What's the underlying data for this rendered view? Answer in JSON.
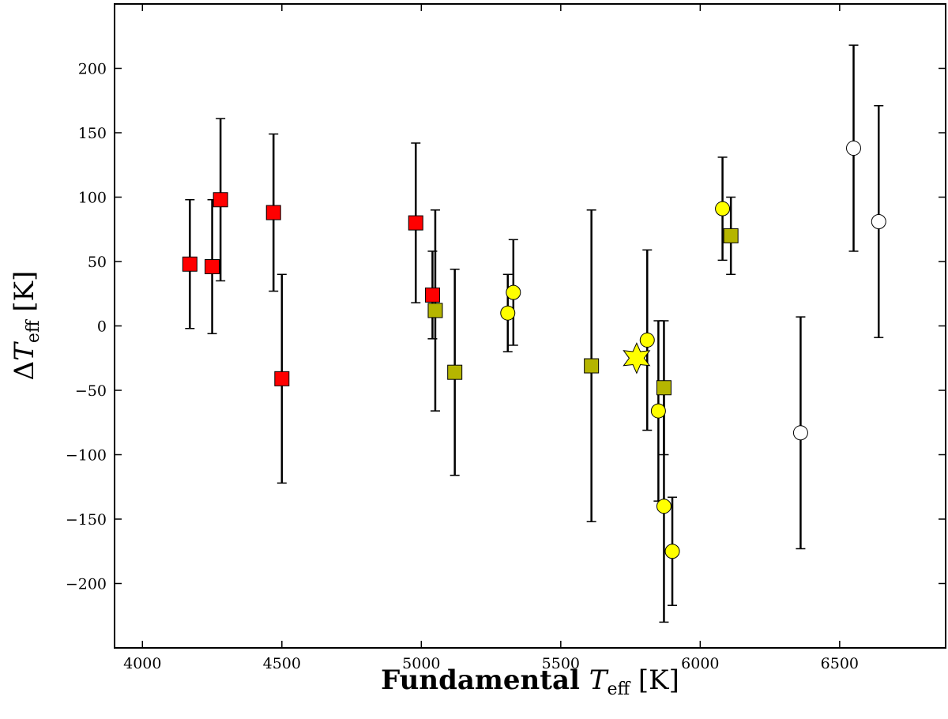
{
  "chart_data": {
    "type": "scatter",
    "xlabel_parts": {
      "prefix": "Fundamental ",
      "symbol": "T",
      "sub": "eff",
      "unit": " [K]"
    },
    "ylabel_parts": {
      "prefix": "Δ",
      "symbol": "T",
      "sub": "eff",
      "unit": " [K]"
    },
    "xlim": [
      3900,
      6880
    ],
    "ylim": [
      -250,
      250
    ],
    "xticks": [
      4000,
      4500,
      5000,
      5500,
      6000,
      6500
    ],
    "yticks": [
      -200,
      -150,
      -100,
      -50,
      0,
      50,
      100,
      150,
      200
    ],
    "ytick_labels": [
      "−200",
      "−150",
      "−100",
      "−50",
      "0",
      "50",
      "100",
      "150",
      "200"
    ],
    "grid": false,
    "series": [
      {
        "marker": "square",
        "color": "#ff0000",
        "points": [
          {
            "x": 4170,
            "y": 48,
            "err_lo": 50,
            "err_hi": 50
          },
          {
            "x": 4250,
            "y": 46,
            "err_lo": 52,
            "err_hi": 52
          },
          {
            "x": 4280,
            "y": 98,
            "err_lo": 63,
            "err_hi": 63
          },
          {
            "x": 4470,
            "y": 88,
            "err_lo": 61,
            "err_hi": 61
          },
          {
            "x": 4500,
            "y": -41,
            "err_lo": 81,
            "err_hi": 81
          },
          {
            "x": 4980,
            "y": 80,
            "err_lo": 62,
            "err_hi": 62
          },
          {
            "x": 5040,
            "y": 24,
            "err_lo": 34,
            "err_hi": 34
          }
        ]
      },
      {
        "marker": "square",
        "color": "#b5b500",
        "points": [
          {
            "x": 5050,
            "y": 12,
            "err_lo": 78,
            "err_hi": 78
          },
          {
            "x": 5120,
            "y": -36,
            "err_lo": 80,
            "err_hi": 80
          },
          {
            "x": 5610,
            "y": -31,
            "err_lo": 121,
            "err_hi": 121
          },
          {
            "x": 5870,
            "y": -48,
            "err_lo": 52,
            "err_hi": 52
          },
          {
            "x": 6110,
            "y": 70,
            "err_lo": 30,
            "err_hi": 30
          }
        ]
      },
      {
        "marker": "circle",
        "color": "#ffff00",
        "points": [
          {
            "x": 5310,
            "y": 10,
            "err_lo": 30,
            "err_hi": 30
          },
          {
            "x": 5330,
            "y": 26,
            "err_lo": 41,
            "err_hi": 41
          },
          {
            "x": 5810,
            "y": -11,
            "err_lo": 70,
            "err_hi": 70
          },
          {
            "x": 5850,
            "y": -66,
            "err_lo": 70,
            "err_hi": 70
          },
          {
            "x": 5870,
            "y": -140,
            "err_lo": 90,
            "err_hi": 90
          },
          {
            "x": 5900,
            "y": -175,
            "err_lo": 42,
            "err_hi": 42
          },
          {
            "x": 6080,
            "y": 91,
            "err_lo": 40,
            "err_hi": 40
          }
        ]
      },
      {
        "marker": "circle",
        "color": "#ffffff",
        "points": [
          {
            "x": 6360,
            "y": -83,
            "err_lo": 90,
            "err_hi": 90
          },
          {
            "x": 6550,
            "y": 138,
            "err_lo": 80,
            "err_hi": 80
          },
          {
            "x": 6640,
            "y": 81,
            "err_lo": 90,
            "err_hi": 90
          }
        ]
      },
      {
        "marker": "star",
        "color": "#ffff00",
        "points": [
          {
            "x": 5772,
            "y": -25,
            "err_lo": 0,
            "err_hi": 0
          }
        ]
      }
    ]
  }
}
